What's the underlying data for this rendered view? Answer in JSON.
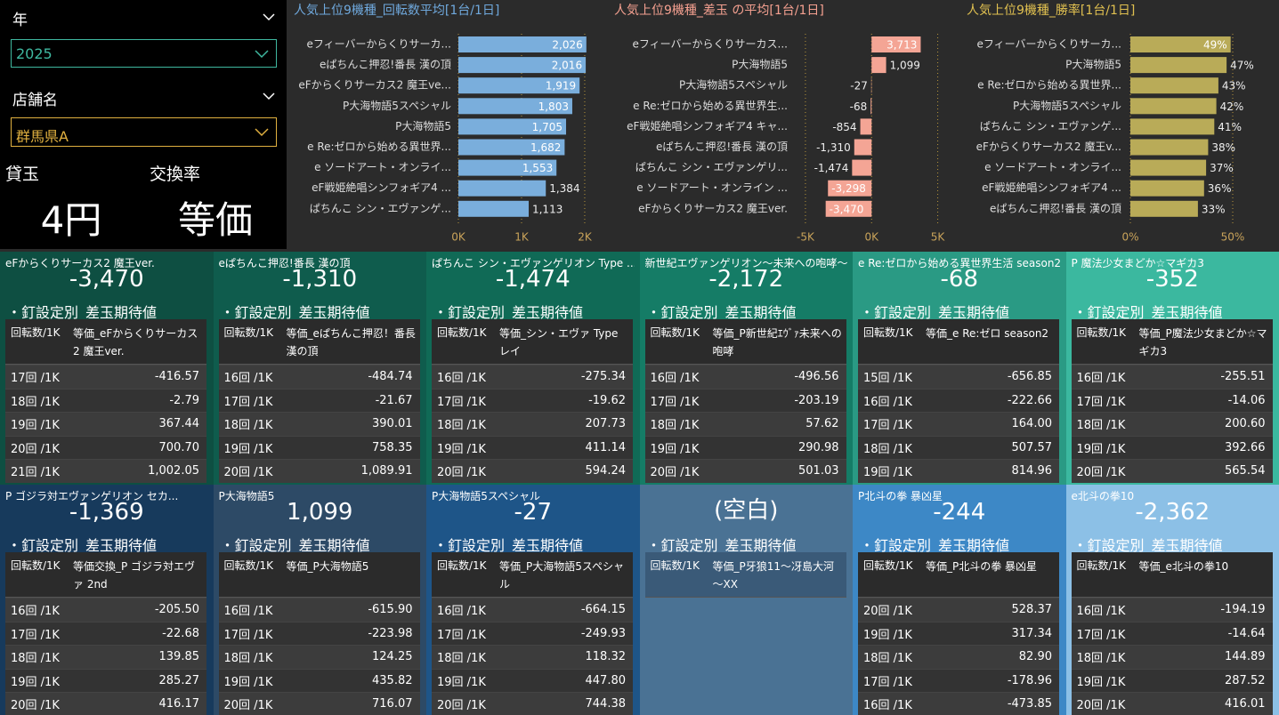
{
  "filters": [
    {
      "label": "年",
      "value": "2025"
    },
    {
      "label": "店舗名",
      "value": "群馬県A"
    }
  ],
  "cards": [
    {
      "label": "貸玉",
      "value": "4円"
    },
    {
      "label": "交換率",
      "value": "等価"
    }
  ],
  "chart_data": [
    {
      "type": "bar",
      "orientation": "horizontal",
      "title": "人気上位9機種_回転数平均[1台/1日]",
      "title_color": "#6fa8dc",
      "color": "#7aaedc",
      "categories": [
        "eフィーバーからくりサーカ...",
        "eぱちんこ押忍!番長 漢の頂",
        "eFからくりサーカス2 魔王ve...",
        "P大海物語5スペシャル",
        "P大海物語5",
        "e Re:ゼロから始める異世界...",
        "e ソードアート・オンライ...",
        "eF戦姫絶唱シンフォギア4 ...",
        "ぱちんこ シン・エヴァンゲ..."
      ],
      "values": [
        2026,
        2016,
        1919,
        1803,
        1705,
        1682,
        1553,
        1384,
        1113
      ],
      "value_labels": [
        "2,026",
        "2,016",
        "1,919",
        "1,803",
        "1,705",
        "1,682",
        "1,553",
        "1,384",
        "1,113"
      ],
      "xlim": [
        0,
        2050
      ],
      "xticks": [
        {
          "value": 0,
          "label": "0K"
        },
        {
          "value": 1000,
          "label": "1K"
        },
        {
          "value": 2000,
          "label": "2K"
        }
      ],
      "grid": true
    },
    {
      "type": "bar",
      "orientation": "horizontal",
      "title": "人気上位9機種_差玉 の平均[1台/1日]",
      "title_color": "#f4a090",
      "color": "#f4a595",
      "categories": [
        "eフィーバーからくりサーカス...",
        "P大海物語5",
        "P大海物語5スペシャル",
        "e Re:ゼロから始める異世界生...",
        "eF戦姫絶唱シンフォギア4 キャ...",
        "eぱちんこ押忍!番長 漢の頂",
        "ぱちんこ シン・エヴァンゲリ...",
        "e ソードアート・オンライン ...",
        "eFからくりサーカス2 魔王ver."
      ],
      "values": [
        3713,
        1099,
        -27,
        -68,
        -854,
        -1310,
        -1474,
        -3298,
        -3470
      ],
      "value_labels": [
        "3,713",
        "1,099",
        "-27",
        "-68",
        "-854",
        "-1,310",
        "-1,474",
        "-3,298",
        "-3,470"
      ],
      "xlim": [
        -5500,
        5500
      ],
      "xticks": [
        {
          "value": -5000,
          "label": "-5K"
        },
        {
          "value": 0,
          "label": "0K"
        },
        {
          "value": 5000,
          "label": "5K"
        }
      ],
      "grid": true
    },
    {
      "type": "bar",
      "orientation": "horizontal",
      "title": "人気上位9機種_勝率[1台/1日]",
      "title_color": "#e0c050",
      "color": "#b9ab58",
      "categories": [
        "eフィーバーからくりサーカ...",
        "P大海物語5",
        "e Re:ゼロから始める異世界...",
        "P大海物語5スペシャル",
        "ぱちんこ シン・エヴァンゲ...",
        "eFからくりサーカス2 魔王v...",
        "e ソードアート・オンライ...",
        "eF戦姫絶唱シンフォギア4 ...",
        "eぱちんこ押忍!番長 漢の頂"
      ],
      "values": [
        49,
        47,
        43,
        42,
        41,
        38,
        37,
        36,
        33
      ],
      "value_labels": [
        "49%",
        "47%",
        "43%",
        "42%",
        "41%",
        "38%",
        "37%",
        "36%",
        "33%"
      ],
      "xlim": [
        0,
        56
      ],
      "xticks": [
        {
          "value": 0,
          "label": "0%"
        },
        {
          "value": 50,
          "label": "50%"
        }
      ],
      "grid": true
    }
  ],
  "tiles": [
    {
      "name": "eFからくりサーカス2 魔王ver.",
      "value": "-3,470",
      "subtitle": "・釘設定別_差玉期待値",
      "color": "#0e4f42",
      "columns": [
        "回転数/1K",
        "等価_eFからくりサーカス2 魔王ver."
      ],
      "rows": [
        [
          "17回 /1K",
          "-416.57"
        ],
        [
          "18回 /1K",
          "-2.79"
        ],
        [
          "19回 /1K",
          "367.44"
        ],
        [
          "20回 /1K",
          "700.70"
        ],
        [
          "21回 /1K",
          "1,002.05"
        ]
      ]
    },
    {
      "name": "eぱちんこ押忍!番長 漢の頂",
      "value": "-1,310",
      "subtitle": "・釘設定別_差玉期待値",
      "color": "#0f5c4d",
      "columns": [
        "回転数/1K",
        "等価_eぱちんこ押忍！番長 漢の頂"
      ],
      "rows": [
        [
          "16回 /1K",
          "-484.74"
        ],
        [
          "17回 /1K",
          "-21.67"
        ],
        [
          "18回 /1K",
          "390.01"
        ],
        [
          "19回 /1K",
          "758.35"
        ],
        [
          "20回 /1K",
          "1,089.91"
        ]
      ]
    },
    {
      "name": "ぱちんこ シン・エヴァンゲリオン Type ...",
      "value": "-1,474",
      "subtitle": "・釘設定別_差玉期待値",
      "color": "#106a56",
      "columns": [
        "回転数/1K",
        "等価_シン・エヴァ Type レイ"
      ],
      "rows": [
        [
          "16回 /1K",
          "-275.34"
        ],
        [
          "17回 /1K",
          "-19.62"
        ],
        [
          "18回 /1K",
          "207.73"
        ],
        [
          "19回 /1K",
          "411.14"
        ],
        [
          "20回 /1K",
          "594.24"
        ]
      ]
    },
    {
      "name": "新世紀エヴァンゲリオン～未来への咆哮～...",
      "value": "-2,172",
      "subtitle": "・釘設定別_差玉期待値",
      "color": "#157c66",
      "columns": [
        "回転数/1K",
        "等価_P新世紀ｴｳﾞｧ未来への咆哮"
      ],
      "rows": [
        [
          "16回 /1K",
          "-496.56"
        ],
        [
          "17回 /1K",
          "-203.19"
        ],
        [
          "18回 /1K",
          "57.62"
        ],
        [
          "19回 /1K",
          "290.98"
        ],
        [
          "20回 /1K",
          "501.03"
        ]
      ]
    },
    {
      "name": "e Re:ゼロから始める異世界生活 season2",
      "value": "-68",
      "subtitle": "・釘設定別_差玉期待値",
      "color": "#2a9a84",
      "columns": [
        "回転数/1K",
        "等価_e Re:ゼロ season2"
      ],
      "rows": [
        [
          "15回 /1K",
          "-656.85"
        ],
        [
          "16回 /1K",
          "-222.66"
        ],
        [
          "17回 /1K",
          "164.00"
        ],
        [
          "18回 /1K",
          "507.57"
        ],
        [
          "19回 /1K",
          "814.96"
        ]
      ]
    },
    {
      "name": "P 魔法少女まどか☆マギカ3",
      "value": "-352",
      "subtitle": "・釘設定別_差玉期待値",
      "color": "#3bb89f",
      "columns": [
        "回転数/1K",
        "等価_P魔法少女まどか☆マギカ3"
      ],
      "rows": [
        [
          "16回 /1K",
          "-255.51"
        ],
        [
          "17回 /1K",
          "-14.06"
        ],
        [
          "18回 /1K",
          "200.60"
        ],
        [
          "19回 /1K",
          "392.66"
        ],
        [
          "20回 /1K",
          "565.54"
        ]
      ]
    },
    {
      "name": "P ゴジラ対エヴァンゲリオン セカ...",
      "value": "-1,369",
      "subtitle": "・釘設定別_差玉期待値",
      "color": "#173a5c",
      "columns": [
        "回転数/1K",
        "等価交換_P ゴジラ対エヴァ 2nd"
      ],
      "rows": [
        [
          "16回 /1K",
          "-205.50"
        ],
        [
          "17回 /1K",
          "-22.68"
        ],
        [
          "18回 /1K",
          "139.85"
        ],
        [
          "19回 /1K",
          "285.27"
        ],
        [
          "20回 /1K",
          "416.17"
        ]
      ]
    },
    {
      "name": "P大海物語5",
      "value": "1,099",
      "subtitle": "・釘設定別_差玉期待値",
      "color": "#2d4a66",
      "columns": [
        "回転数/1K",
        "等価_P大海物語5"
      ],
      "rows": [
        [
          "16回 /1K",
          "-615.90"
        ],
        [
          "17回 /1K",
          "-223.98"
        ],
        [
          "18回 /1K",
          "124.25"
        ],
        [
          "19回 /1K",
          "435.82"
        ],
        [
          "20回 /1K",
          "716.07"
        ]
      ]
    },
    {
      "name": "P大海物語5スペシャル",
      "value": "-27",
      "subtitle": "・釘設定別_差玉期待値",
      "color": "#1e5588",
      "columns": [
        "回転数/1K",
        "等価_P大海物語5スペシャル"
      ],
      "rows": [
        [
          "16回 /1K",
          "-664.15"
        ],
        [
          "17回 /1K",
          "-249.93"
        ],
        [
          "18回 /1K",
          "118.32"
        ],
        [
          "19回 /1K",
          "447.80"
        ],
        [
          "20回 /1K",
          "744.38"
        ]
      ]
    },
    {
      "value": "(空白)",
      "subtitle": "・釘設定別_差玉期待値",
      "color": "#4a7294",
      "columns": [
        "回転数/1K",
        "等価_P牙狼11～冴島大河～XX"
      ],
      "rows": []
    },
    {
      "name": "P北斗の拳 暴凶星",
      "value": "-244",
      "subtitle": "・釘設定別_差玉期待値",
      "color": "#3d88c6",
      "columns": [
        "回転数/1K",
        "等価_P北斗の拳 暴凶星"
      ],
      "rows": [
        [
          "20回 /1K",
          "528.37"
        ],
        [
          "19回 /1K",
          "317.34"
        ],
        [
          "18回 /1K",
          "82.90"
        ],
        [
          "17回 /1K",
          "-178.96"
        ],
        [
          "16回 /1K",
          "-473.85"
        ]
      ]
    },
    {
      "name": "e北斗の拳10",
      "value": "-2,362",
      "subtitle": "・釘設定別_差玉期待値",
      "color": "#8cc0e6",
      "columns": [
        "回転数/1K",
        "等価_e北斗の拳10"
      ],
      "rows": [
        [
          "16回 /1K",
          "-194.19"
        ],
        [
          "17回 /1K",
          "-14.64"
        ],
        [
          "18回 /1K",
          "144.89"
        ],
        [
          "19回 /1K",
          "287.52"
        ],
        [
          "20回 /1K",
          "416.01"
        ]
      ]
    }
  ]
}
